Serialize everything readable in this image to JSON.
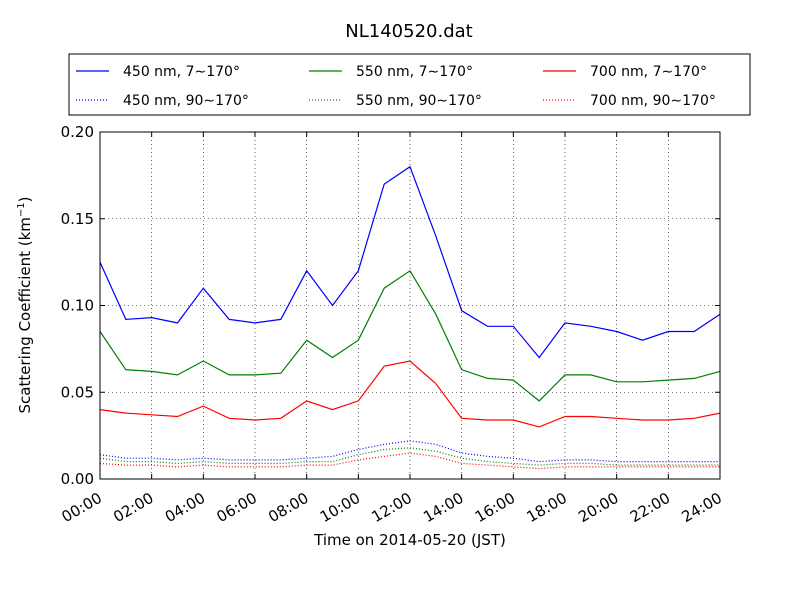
{
  "chart_data": {
    "type": "line",
    "title": "NL140520.dat",
    "xlabel": "Time on 2014-05-20 (JST)",
    "ylabel": "Scattering Coefficient (km",
    "ylabel_sup": "−1",
    "ylabel_tail": ")",
    "xlim": [
      "00:00",
      "24:00"
    ],
    "ylim": [
      0,
      0.2
    ],
    "grid": true,
    "grid_style": "dotted",
    "legend_position": "top, outside plot",
    "x_ticks": [
      "00:00",
      "02:00",
      "04:00",
      "06:00",
      "08:00",
      "10:00",
      "12:00",
      "14:00",
      "16:00",
      "18:00",
      "20:00",
      "22:00",
      "24:00"
    ],
    "y_ticks": [
      "0.00",
      "0.05",
      "0.10",
      "0.15",
      "0.20"
    ],
    "y_tick_values": [
      0,
      0.05,
      0.1,
      0.15,
      0.2
    ],
    "series_note": "values sampled hourly (hours 0-24), read approximately from the plot",
    "x": [
      0,
      1,
      2,
      3,
      4,
      5,
      6,
      7,
      8,
      9,
      10,
      11,
      12,
      13,
      14,
      15,
      16,
      17,
      18,
      19,
      20,
      21,
      22,
      23,
      24
    ],
    "series": [
      {
        "name": "450 nm, 7∼170°",
        "color": "#0000ff",
        "style": "solid",
        "values": [
          0.125,
          0.092,
          0.093,
          0.09,
          0.11,
          0.092,
          0.09,
          0.092,
          0.12,
          0.1,
          0.12,
          0.17,
          0.18,
          0.14,
          0.097,
          0.088,
          0.088,
          0.07,
          0.09,
          0.088,
          0.085,
          0.08,
          0.085,
          0.085,
          0.095
        ]
      },
      {
        "name": "450 nm, 90∼170°",
        "color": "#0000ff",
        "style": "dotted",
        "values": [
          0.014,
          0.012,
          0.012,
          0.011,
          0.012,
          0.011,
          0.011,
          0.011,
          0.012,
          0.013,
          0.017,
          0.02,
          0.022,
          0.02,
          0.015,
          0.013,
          0.012,
          0.01,
          0.011,
          0.011,
          0.01,
          0.01,
          0.01,
          0.01,
          0.01
        ]
      },
      {
        "name": "550 nm, 7∼170°",
        "color": "#008000",
        "style": "solid",
        "values": [
          0.085,
          0.063,
          0.062,
          0.06,
          0.068,
          0.06,
          0.06,
          0.061,
          0.08,
          0.07,
          0.08,
          0.11,
          0.12,
          0.095,
          0.063,
          0.058,
          0.057,
          0.045,
          0.06,
          0.06,
          0.056,
          0.056,
          0.057,
          0.058,
          0.062
        ]
      },
      {
        "name": "550 nm, 90∼170°",
        "color": "#008000",
        "style": "dotted",
        "values": [
          0.012,
          0.01,
          0.01,
          0.009,
          0.01,
          0.009,
          0.009,
          0.009,
          0.01,
          0.01,
          0.014,
          0.017,
          0.018,
          0.016,
          0.012,
          0.01,
          0.009,
          0.008,
          0.009,
          0.009,
          0.008,
          0.008,
          0.008,
          0.008,
          0.008
        ]
      },
      {
        "name": "700 nm, 7∼170°",
        "color": "#ff0000",
        "style": "solid",
        "values": [
          0.04,
          0.038,
          0.037,
          0.036,
          0.042,
          0.035,
          0.034,
          0.035,
          0.045,
          0.04,
          0.045,
          0.065,
          0.068,
          0.055,
          0.035,
          0.034,
          0.034,
          0.03,
          0.036,
          0.036,
          0.035,
          0.034,
          0.034,
          0.035,
          0.038
        ]
      },
      {
        "name": "700 nm, 90∼170°",
        "color": "#ff0000",
        "style": "dotted",
        "values": [
          0.009,
          0.008,
          0.008,
          0.007,
          0.008,
          0.007,
          0.007,
          0.007,
          0.008,
          0.008,
          0.011,
          0.013,
          0.015,
          0.013,
          0.009,
          0.008,
          0.007,
          0.006,
          0.007,
          0.007,
          0.007,
          0.007,
          0.007,
          0.007,
          0.007
        ]
      }
    ]
  }
}
